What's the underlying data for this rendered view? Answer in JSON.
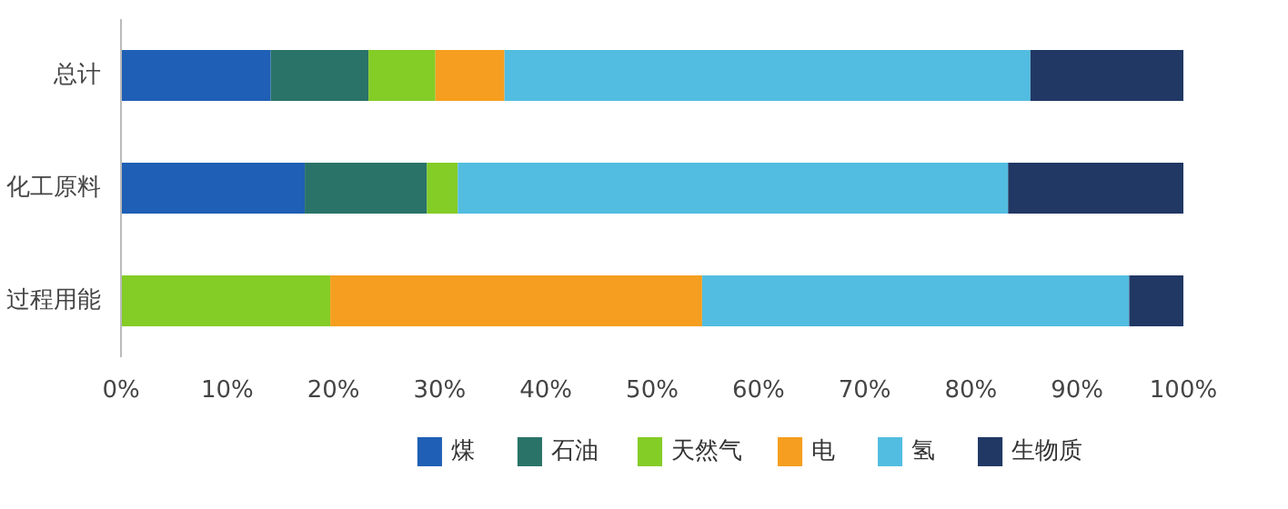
{
  "chart_data": {
    "type": "bar",
    "orientation": "horizontal",
    "stacked": true,
    "categories": [
      "总计",
      "化工原料",
      "过程用能"
    ],
    "series": [
      {
        "name": "煤",
        "color": "#1f5fb5",
        "values": [
          14.1,
          17.3,
          0
        ]
      },
      {
        "name": "石油",
        "color": "#2a7369",
        "values": [
          9.2,
          11.5,
          0
        ]
      },
      {
        "name": "天然气",
        "color": "#84cc26",
        "values": [
          6.3,
          2.9,
          19.7
        ]
      },
      {
        "name": "电",
        "color": "#f59e1f",
        "values": [
          6.5,
          0,
          35.0
        ]
      },
      {
        "name": "氢",
        "color": "#52bde0",
        "values": [
          49.5,
          51.8,
          40.2
        ]
      },
      {
        "name": "生物质",
        "color": "#213865",
        "values": [
          14.4,
          16.5,
          5.1
        ]
      }
    ],
    "xlim": [
      0,
      100
    ],
    "xticks": [
      {
        "value": 0,
        "label": "0%"
      },
      {
        "value": 10,
        "label": "10%"
      },
      {
        "value": 20,
        "label": "20%"
      },
      {
        "value": 30,
        "label": "30%"
      },
      {
        "value": 40,
        "label": "40%"
      },
      {
        "value": 50,
        "label": "50%"
      },
      {
        "value": 60,
        "label": "60%"
      },
      {
        "value": 70,
        "label": "70%"
      },
      {
        "value": 80,
        "label": "80%"
      },
      {
        "value": 90,
        "label": "90%"
      },
      {
        "value": 100,
        "label": "100%"
      }
    ],
    "grid": false,
    "legend": "bottom"
  }
}
